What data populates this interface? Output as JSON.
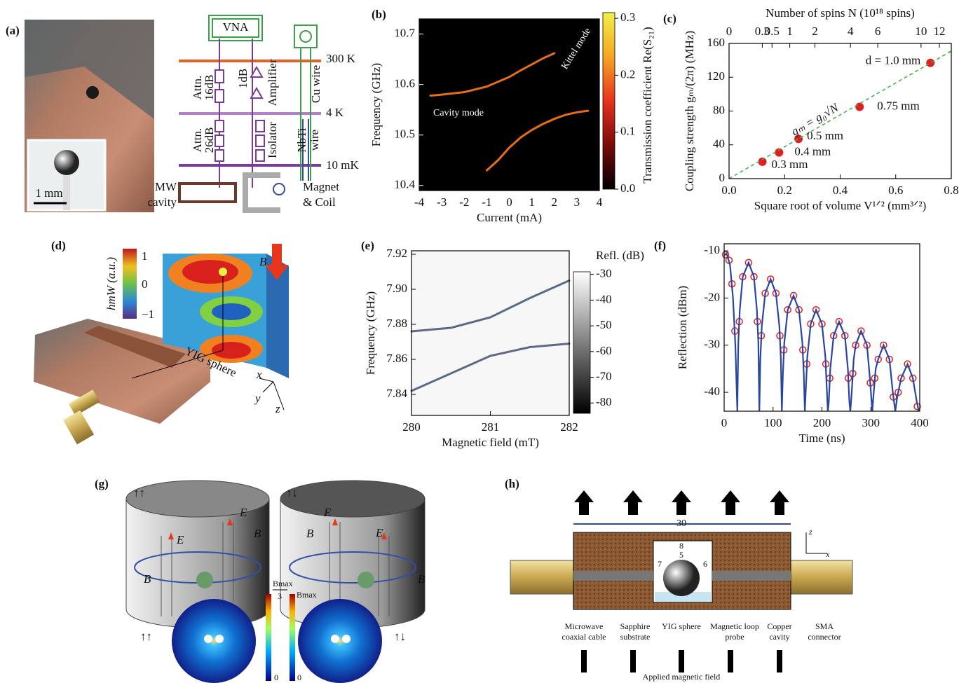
{
  "panels": {
    "labels": [
      "(a)",
      "(b)",
      "(c)",
      "(d)",
      "(e)",
      "(f)",
      "(g)",
      "(h)"
    ],
    "a": {
      "scale_bar": "1 mm",
      "instrument": "VNA",
      "temperatures": [
        "300 K",
        "4 K",
        "10 mK"
      ],
      "attn_top": [
        "Attn.",
        "16dB"
      ],
      "attn_bottom": [
        "Attn.",
        "26dB"
      ],
      "amp_gain": "1dB",
      "amplifier": "Amplifier",
      "isolator": "Isolator",
      "cu_wire": "Cu wire",
      "nbti_wire": [
        "NbTi",
        "wire"
      ],
      "cavity": [
        "MW",
        "cavity"
      ],
      "magnet": [
        "Magnet",
        "& Coil"
      ]
    },
    "d": {
      "colorbar_label": "hmW (a.u.)",
      "colorbar_ticks": [
        "1",
        "0",
        "−1"
      ],
      "field": "B",
      "sphere": "YIG sphere",
      "axes": [
        "x",
        "y",
        "z"
      ]
    },
    "g": {
      "configs": [
        "↑↑",
        "↑↓",
        "↑↑",
        "↑↓"
      ],
      "electric": "E",
      "magnetic": "B",
      "colorbar_max": "Bmax",
      "colorbar_denominator": "3",
      "colorbar_zero": "0"
    },
    "h": {
      "dimensions": [
        "30",
        "8",
        "5",
        "7",
        "6"
      ],
      "axes": [
        "z",
        "x"
      ],
      "labels": [
        [
          "Microwave",
          "coaxial cable"
        ],
        [
          "Sapphire",
          "substrate"
        ],
        [
          "YIG sphere"
        ],
        [
          "Magnetic loop",
          "probe"
        ],
        [
          "Copper",
          "cavity"
        ],
        [
          "SMA",
          "connector"
        ]
      ],
      "field": "Applied magnetic field"
    }
  },
  "chart_data": [
    {
      "type": "heatmap",
      "xlabel": "Current (mA)",
      "ylabel": "Frequency (GHz)",
      "xlim": [
        -4,
        4
      ],
      "ylim": [
        10.39,
        10.73
      ],
      "xticks": [
        -4,
        -3,
        -2,
        -1,
        0,
        1,
        2,
        3,
        4
      ],
      "yticks": [
        10.4,
        10.5,
        10.6,
        10.7
      ],
      "background": "#000000",
      "colorbar": {
        "label": "Transmission coefficient Re(S₂₁)",
        "lim": [
          0,
          0.31
        ],
        "ticks": [
          {
            "value": 0,
            "label": "0.0"
          },
          0.1,
          0.2,
          0.3
        ],
        "colors": [
          "#000000",
          "#7a0a0a",
          "#e8321e",
          "#f5a623",
          "#f0f04a"
        ]
      },
      "annotations": [
        "Cavity mode",
        "Kittel mode"
      ],
      "series": [
        {
          "color": "#ff7a1a",
          "x": [
            -3.5,
            -3,
            -2,
            -1,
            0,
            0.5,
            1,
            1.5,
            2
          ],
          "values": [
            10.578,
            10.58,
            10.585,
            10.596,
            10.615,
            10.628,
            10.64,
            10.652,
            10.662
          ]
        },
        {
          "color": "#ff7a1a",
          "x": [
            -1,
            -0.5,
            0,
            0.5,
            1,
            1.5,
            2,
            2.5,
            3,
            3.5
          ],
          "values": [
            10.43,
            10.45,
            10.475,
            10.495,
            10.51,
            10.522,
            10.532,
            10.54,
            10.545,
            10.548
          ]
        }
      ]
    },
    {
      "type": "scatter",
      "xlabel": "Square root of volume V¹ᐟ² (mm³ᐟ²)",
      "ylabel": "Coupling strength gₘ/(2π) (MHz)",
      "x2label": "Number of spins N (10¹⁸ spins)",
      "x2scale": "sqrt",
      "x2lim": [
        0,
        13.4
      ],
      "x2ticks": [
        0,
        0.3,
        0.5,
        1,
        2,
        4,
        6,
        10,
        12
      ],
      "xlim": [
        0,
        0.8
      ],
      "ylim": [
        0,
        160
      ],
      "xticks": [
        {
          "value": 0,
          "label": "0.0"
        },
        0.2,
        0.4,
        0.6,
        0.8
      ],
      "yticks": [
        0,
        40,
        80,
        120,
        160
      ],
      "series": [
        {
          "color": "#e02020",
          "x": [
            0.12,
            0.18,
            0.25,
            0.47,
            0.725
          ],
          "values": [
            20,
            31,
            47,
            85,
            137
          ]
        }
      ],
      "annotations": [
        "0.3 mm",
        "0.4 mm",
        "0.5 mm",
        "0.75 mm",
        "d = 1.0 mm"
      ],
      "fit": {
        "color": "#3cb043",
        "x": [
          0,
          0.8
        ],
        "values": [
          0,
          151
        ],
        "label": "gₘ = g₀√N"
      }
    },
    {
      "type": "heatmap",
      "xlabel": "Magnetic field (mT)",
      "ylabel": "Frequency (GHz)",
      "xlim": [
        280,
        282
      ],
      "ylim": [
        7.828,
        7.922
      ],
      "xticks": [
        280,
        281,
        282
      ],
      "yticks": [
        7.84,
        7.86,
        7.88,
        {
          "value": 7.9,
          "label": "7.90"
        },
        7.92
      ],
      "background": "#f7f7f7",
      "colorbar": {
        "label": "Refl. (dB)",
        "lim": [
          -84,
          -29
        ],
        "ticks": [
          -30,
          -40,
          -50,
          -60,
          -70,
          -80
        ],
        "colors": [
          "#000000",
          "#ffffff"
        ]
      },
      "series": [
        {
          "color": "#4a5a78",
          "x": [
            280,
            280.5,
            281,
            281.5,
            282
          ],
          "values": [
            7.876,
            7.878,
            7.884,
            7.895,
            7.905
          ]
        },
        {
          "color": "#4a5a78",
          "x": [
            280,
            280.5,
            281,
            281.5,
            282
          ],
          "values": [
            7.842,
            7.852,
            7.862,
            7.867,
            7.869
          ]
        }
      ]
    },
    {
      "type": "line",
      "xlabel": "Time (ns)",
      "ylabel": "Reflection (dBm)",
      "xlim": [
        0,
        400
      ],
      "ylim": [
        -44,
        -8.5
      ],
      "xticks": [
        0,
        100,
        200,
        300,
        400
      ],
      "yticks": [
        -40,
        -30,
        -20,
        -10
      ],
      "series": [
        {
          "color": "#e02020",
          "marker": "circle",
          "x": [
            3,
            10,
            16,
            22,
            31,
            38,
            50,
            61,
            68,
            76,
            84,
            95,
            106,
            114,
            122,
            130,
            142,
            153,
            161,
            169,
            177,
            188,
            200,
            208,
            216,
            224,
            235,
            247,
            254,
            263,
            269,
            280,
            292,
            299,
            308,
            315,
            326,
            338,
            346,
            356,
            362,
            375,
            386,
            395
          ],
          "values": [
            -10.8,
            -12,
            -17,
            -27,
            -25,
            -15.5,
            -12.5,
            -15.5,
            -25,
            -28,
            -19,
            -16,
            -19,
            -28,
            -31,
            -22.5,
            -19.5,
            -22.5,
            -31,
            -34,
            -25.5,
            -22.5,
            -25.5,
            -34,
            -37,
            -28,
            -25,
            -28,
            -37,
            -36,
            -30,
            -27,
            -30,
            -38,
            -37,
            -33,
            -30,
            -33,
            -41,
            -40,
            -37,
            -34,
            -37,
            -43
          ]
        },
        {
          "color": "#2846a0",
          "x": [
            0,
            5,
            12,
            18,
            23,
            27,
            29,
            32,
            38,
            50,
            61,
            67,
            70,
            72,
            74,
            77,
            84,
            95,
            106,
            113,
            116,
            118,
            120,
            123,
            130,
            142,
            153,
            160,
            163,
            165,
            167,
            170,
            177,
            188,
            200,
            207,
            210,
            212,
            214,
            217,
            224,
            235,
            247,
            253,
            256,
            258,
            261,
            265,
            269,
            280,
            292,
            298,
            303,
            306,
            310,
            315,
            326,
            338,
            345,
            350,
            354,
            362,
            375,
            386,
            394,
            398
          ],
          "values": [
            -11,
            -10.5,
            -13,
            -20,
            -30,
            -44,
            -29.5,
            -22.5,
            -15.5,
            -12.5,
            -15.5,
            -22.5,
            -29.5,
            -44,
            -33,
            -26,
            -19,
            -16,
            -19,
            -26,
            -33,
            -44,
            -36.5,
            -29.5,
            -22.5,
            -19.5,
            -22.5,
            -29.5,
            -36.5,
            -44,
            -39.5,
            -32.5,
            -25.5,
            -22.5,
            -25.5,
            -32.5,
            -39.5,
            -44,
            -42,
            -35,
            -28,
            -25,
            -28,
            -35,
            -42,
            -44,
            -40,
            -33,
            -30,
            -27,
            -30,
            -37,
            -44,
            -40,
            -35,
            -33,
            -30,
            -33,
            -40,
            -44,
            -41,
            -37,
            -34,
            -37,
            -42,
            -44
          ]
        }
      ]
    }
  ]
}
